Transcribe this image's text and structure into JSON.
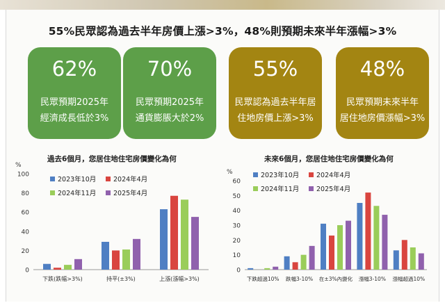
{
  "headline": "55%民眾認為過去半年房價上漲>3%，48%則預期未來半年漲幅>3%",
  "cards": [
    {
      "value": "62%",
      "line1": "民眾預期2025年",
      "line2": "經濟成長低於3%",
      "color": "#5d9f49"
    },
    {
      "value": "70%",
      "line1": "民眾預期2025年",
      "line2": "通貨膨脹大於2%",
      "color": "#5d9f49"
    },
    {
      "value": "55%",
      "line1": "民眾認為過去半年居",
      "line2": "住地房價上漲>3%",
      "color": "#a38512"
    },
    {
      "value": "48%",
      "line1": "民眾預期未來半年",
      "line2": "居住地房價漲幅>3%",
      "color": "#a38512"
    }
  ],
  "colors": {
    "s2023_10": "#4f7fc3",
    "s2024_4": "#d9453f",
    "s2024_11": "#9acd5a",
    "s2025_4": "#9061ad"
  },
  "chart_data": [
    {
      "type": "bar",
      "title": "過去6個月，您居住地住宅房價變化為何",
      "ylabel": "%",
      "ylim": [
        0,
        100
      ],
      "yticks": [
        0,
        20,
        40,
        60,
        80,
        100
      ],
      "categories": [
        "下跌(跌幅>3%)",
        "持平(±3%)",
        "上漲(漲幅>3%)"
      ],
      "legend": "top-left",
      "series": [
        {
          "name": "2023年10月",
          "color": "#4f7fc3",
          "values": [
            6,
            29,
            63
          ]
        },
        {
          "name": "2024年4月",
          "color": "#d9453f",
          "values": [
            2,
            20,
            77
          ]
        },
        {
          "name": "2024年11月",
          "color": "#9acd5a",
          "values": [
            5,
            21,
            73
          ]
        },
        {
          "name": "2025年4月",
          "color": "#9061ad",
          "values": [
            11,
            32,
            55
          ]
        }
      ]
    },
    {
      "type": "bar",
      "title": "未來6個月，您居住地住宅房價變化為何",
      "ylabel": "%",
      "ylim": [
        0,
        60
      ],
      "yticks": [
        0,
        10,
        20,
        30,
        40,
        50,
        60
      ],
      "categories": [
        "下跌超過10%",
        "跌幅3-10%",
        "在±3%內變化",
        "漲幅3-10%",
        "漲幅超過10%"
      ],
      "legend": "top-left",
      "series": [
        {
          "name": "2023年10月",
          "color": "#4f7fc3",
          "values": [
            1,
            9,
            31,
            45,
            13
          ]
        },
        {
          "name": "2024年4月",
          "color": "#d9453f",
          "values": [
            0,
            5,
            23,
            52,
            20
          ]
        },
        {
          "name": "2024年11月",
          "color": "#9acd5a",
          "values": [
            1,
            10,
            30,
            43,
            15
          ]
        },
        {
          "name": "2025年4月",
          "color": "#9061ad",
          "values": [
            2,
            16,
            33,
            37,
            11
          ]
        }
      ]
    }
  ]
}
